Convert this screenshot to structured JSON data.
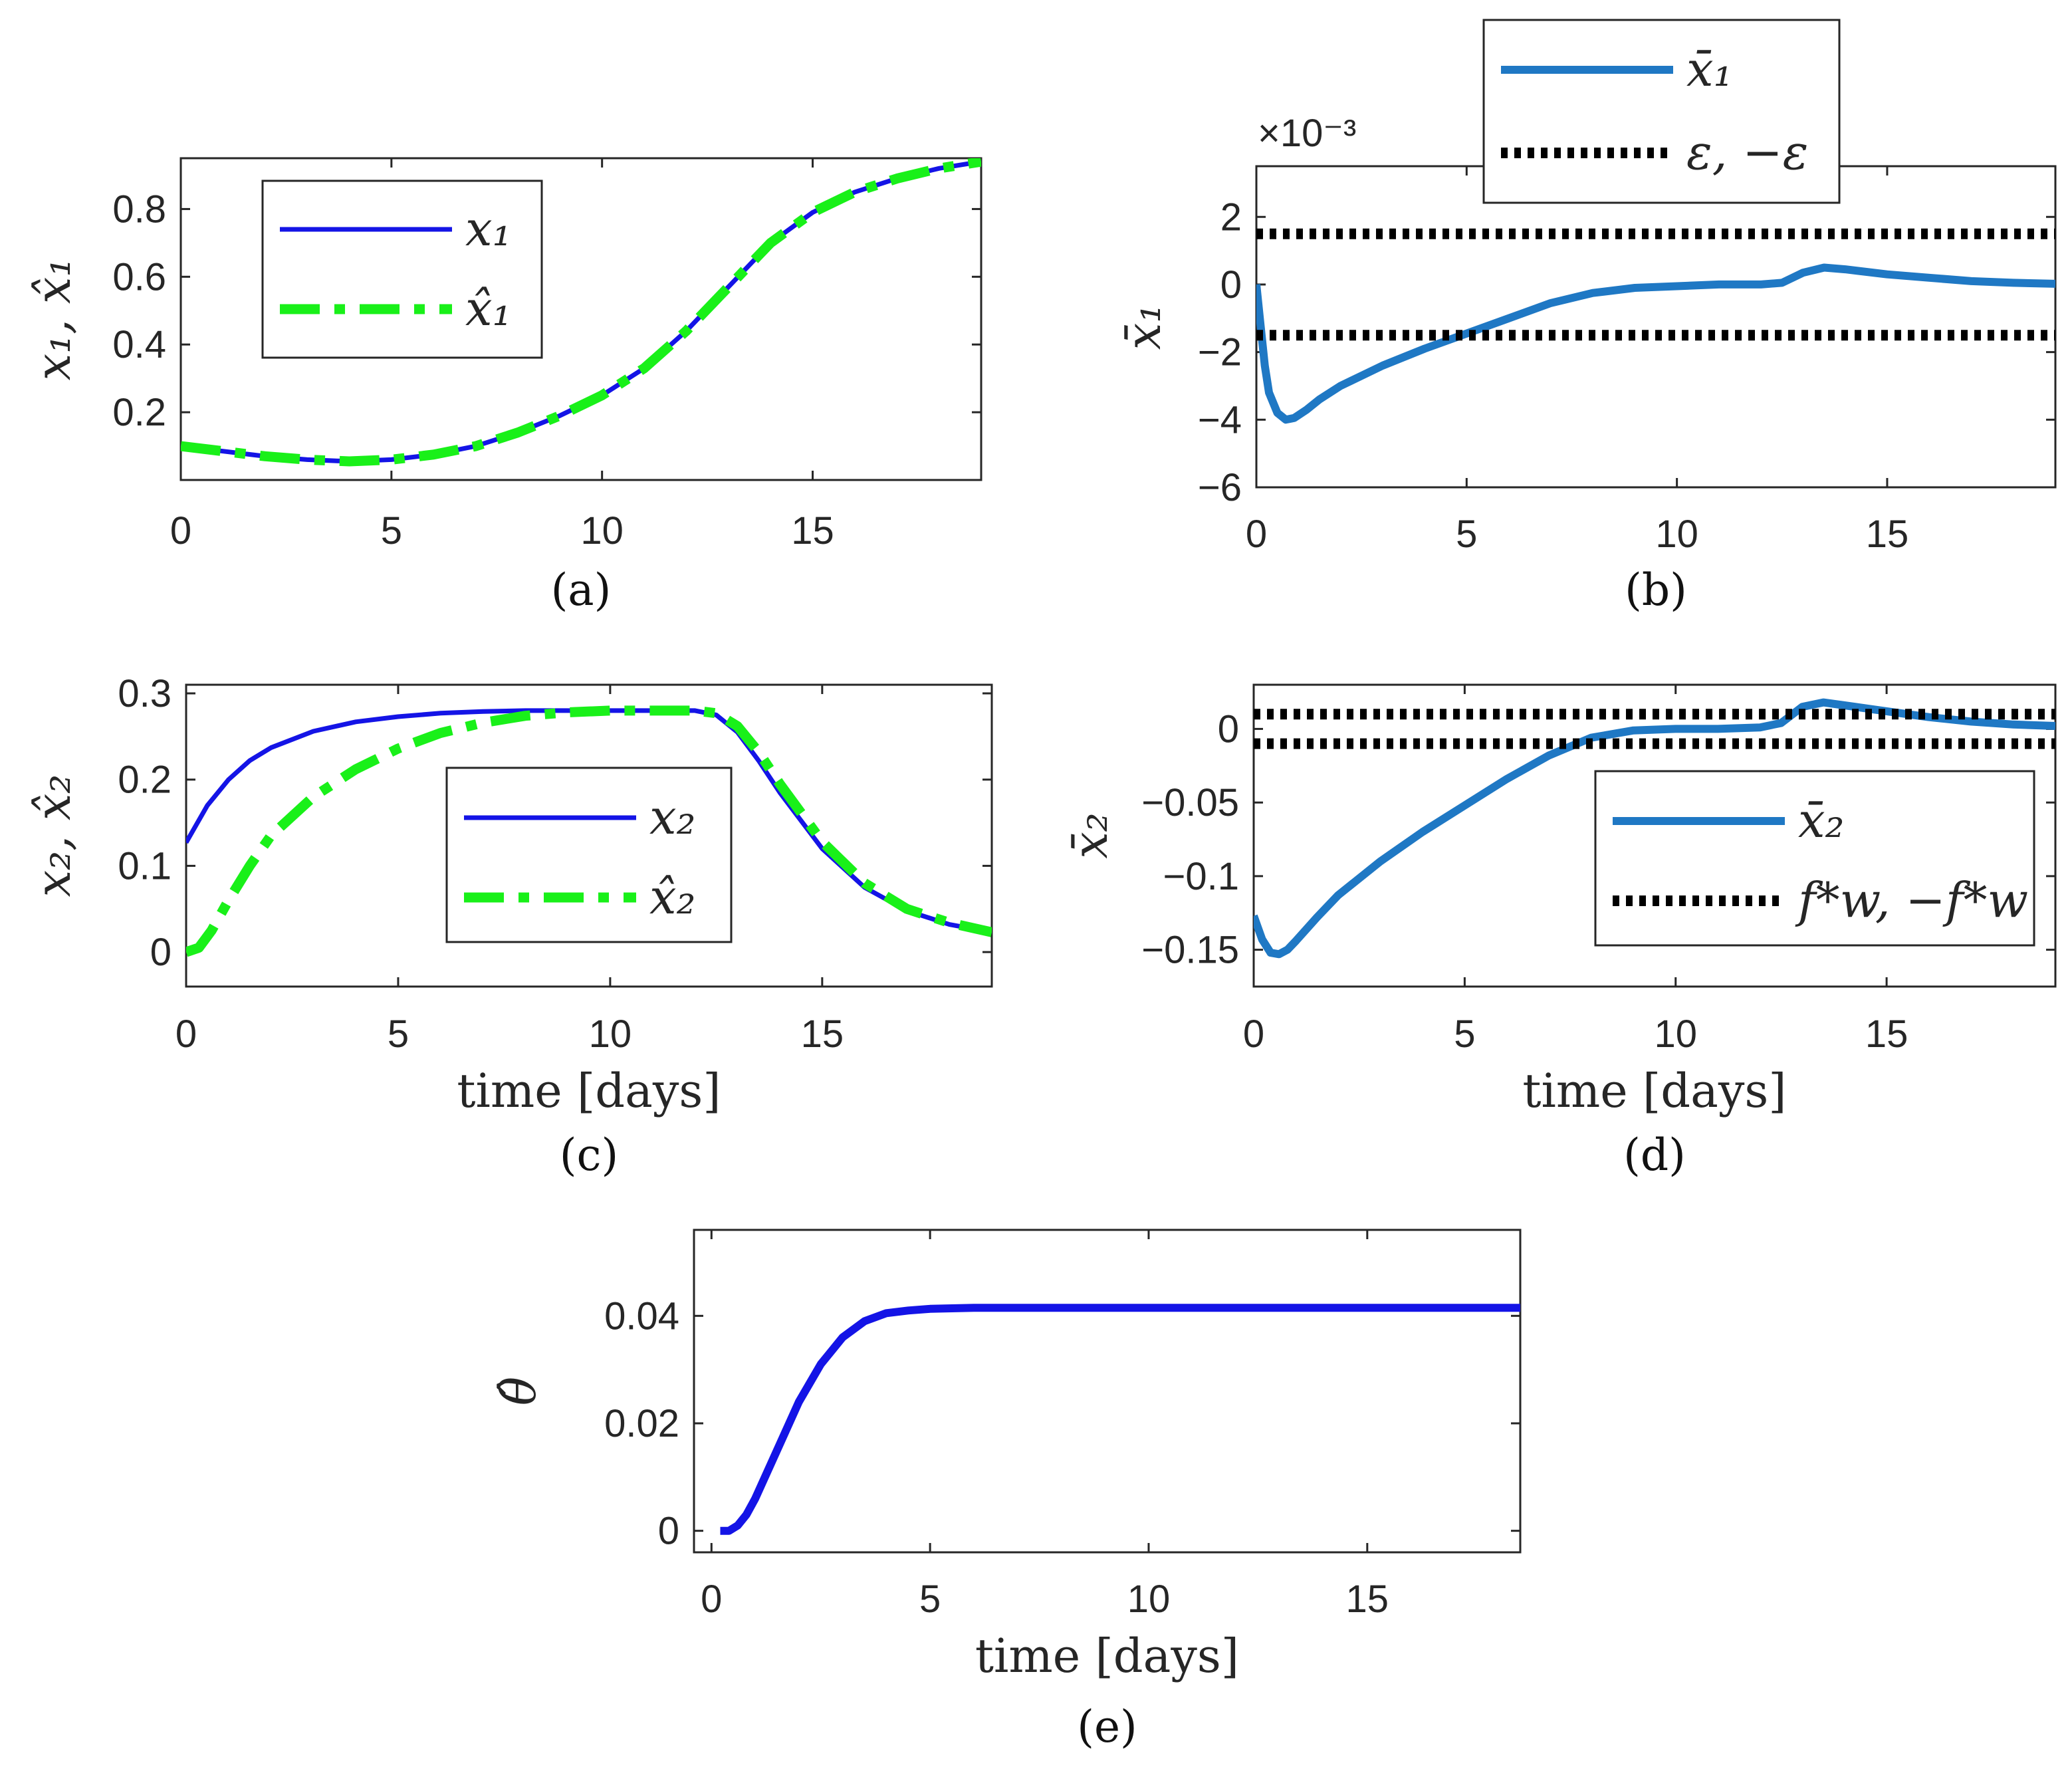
{
  "colors": {
    "blue": "#1414e6",
    "green": "#19f019",
    "lightblue": "#1f78c4",
    "black": "#000000"
  },
  "chart_data": [
    {
      "id": "a",
      "type": "line",
      "caption": "(a)",
      "ylabel": "x₁, x̂₁",
      "xlabel": "",
      "xlim": [
        0,
        19
      ],
      "ylim": [
        0,
        0.95
      ],
      "xticks": [
        "0",
        "5",
        "10",
        "15"
      ],
      "yticks": [
        "0.2",
        "0.4",
        "0.6",
        "0.8"
      ],
      "legend": [
        "x₁",
        "x̂₁"
      ],
      "series": [
        {
          "name": "x₁",
          "style": "solid-blue",
          "x": [
            0,
            1,
            2,
            3,
            4,
            5,
            6,
            7,
            8,
            9,
            10,
            11,
            12,
            13,
            14,
            15,
            16,
            17,
            18,
            19
          ],
          "values": [
            0.1,
            0.085,
            0.07,
            0.06,
            0.055,
            0.06,
            0.075,
            0.1,
            0.14,
            0.19,
            0.25,
            0.33,
            0.44,
            0.57,
            0.7,
            0.79,
            0.85,
            0.89,
            0.92,
            0.94
          ]
        },
        {
          "name": "x̂₁",
          "style": "dashdot-green",
          "x": [
            0,
            1,
            2,
            3,
            4,
            5,
            6,
            7,
            8,
            9,
            10,
            11,
            12,
            13,
            14,
            15,
            16,
            17,
            18,
            19
          ],
          "values": [
            0.1,
            0.085,
            0.07,
            0.06,
            0.055,
            0.06,
            0.075,
            0.1,
            0.14,
            0.19,
            0.25,
            0.33,
            0.44,
            0.57,
            0.7,
            0.79,
            0.85,
            0.89,
            0.92,
            0.94
          ]
        }
      ]
    },
    {
      "id": "b",
      "type": "line",
      "caption": "(b)",
      "ylabel": "x̄₁",
      "xlabel": "",
      "exponent": "×10⁻³",
      "xlim": [
        0,
        19
      ],
      "ylim": [
        -6,
        3.5
      ],
      "xticks": [
        "0",
        "5",
        "10",
        "15"
      ],
      "yticks": [
        "-6",
        "-4",
        "-2",
        "0",
        "2"
      ],
      "legend": [
        "x̄₁",
        "ε, −ε"
      ],
      "series": [
        {
          "name": "x̄₁",
          "style": "thick-lightblue",
          "x": [
            0,
            0.1,
            0.2,
            0.3,
            0.5,
            0.7,
            0.9,
            1.2,
            1.5,
            2,
            3,
            4,
            5,
            6,
            7,
            8,
            9,
            10,
            11,
            12,
            12.5,
            13,
            13.5,
            14,
            15,
            16,
            17,
            18,
            19
          ],
          "values": [
            0,
            -1.2,
            -2.4,
            -3.2,
            -3.8,
            -4.0,
            -3.95,
            -3.7,
            -3.4,
            -3.0,
            -2.4,
            -1.9,
            -1.45,
            -1.0,
            -0.55,
            -0.25,
            -0.1,
            -0.05,
            0,
            0,
            0.05,
            0.35,
            0.5,
            0.45,
            0.3,
            0.2,
            0.1,
            0.05,
            0.02
          ]
        },
        {
          "name": "ε",
          "style": "dotted-black",
          "x": [
            0,
            19
          ],
          "values": [
            1.5,
            1.5
          ]
        },
        {
          "name": "−ε",
          "style": "dotted-black",
          "x": [
            0,
            19
          ],
          "values": [
            -1.5,
            -1.5
          ]
        }
      ]
    },
    {
      "id": "c",
      "type": "line",
      "caption": "(c)",
      "ylabel": "x₂, x̂₂",
      "xlabel": "time [days]",
      "xlim": [
        0,
        19
      ],
      "ylim": [
        -0.04,
        0.31
      ],
      "xticks": [
        "0",
        "5",
        "10",
        "15"
      ],
      "yticks": [
        "0",
        "0.1",
        "0.2",
        "0.3"
      ],
      "legend": [
        "x₂",
        "x̂₂"
      ],
      "series": [
        {
          "name": "x₂",
          "style": "solid-blue",
          "x": [
            0,
            0.5,
            1,
            1.5,
            2,
            3,
            4,
            5,
            6,
            7,
            8,
            9,
            10,
            11,
            12,
            12.5,
            13,
            13.5,
            14,
            15,
            16,
            17,
            18,
            19
          ],
          "values": [
            0.127,
            0.17,
            0.2,
            0.222,
            0.237,
            0.256,
            0.267,
            0.273,
            0.277,
            0.279,
            0.28,
            0.28,
            0.28,
            0.28,
            0.28,
            0.275,
            0.255,
            0.222,
            0.185,
            0.12,
            0.075,
            0.048,
            0.032,
            0.023
          ]
        },
        {
          "name": "x̂₂",
          "style": "dashdot-green",
          "x": [
            0,
            0.3,
            0.6,
            1,
            1.5,
            2,
            3,
            4,
            5,
            6,
            7,
            8,
            9,
            10,
            11,
            12,
            12.5,
            13,
            13.5,
            14,
            15,
            16,
            17,
            18,
            19
          ],
          "values": [
            0,
            0.005,
            0.025,
            0.06,
            0.1,
            0.135,
            0.18,
            0.212,
            0.236,
            0.254,
            0.266,
            0.274,
            0.278,
            0.28,
            0.28,
            0.28,
            0.277,
            0.262,
            0.232,
            0.195,
            0.128,
            0.08,
            0.05,
            0.034,
            0.023
          ]
        }
      ]
    },
    {
      "id": "d",
      "type": "line",
      "caption": "(d)",
      "ylabel": "x̄₂",
      "xlabel": "time [days]",
      "xlim": [
        0,
        19
      ],
      "ylim": [
        -0.175,
        0.03
      ],
      "xticks": [
        "0",
        "5",
        "10",
        "15"
      ],
      "yticks": [
        "-0.15",
        "-0.1",
        "-0.05",
        "0"
      ],
      "legend": [
        "x̄₂",
        "f*w, −f*w"
      ],
      "series": [
        {
          "name": "x̄₂",
          "style": "thick-lightblue",
          "x": [
            0,
            0.2,
            0.4,
            0.6,
            0.8,
            1,
            1.5,
            2,
            3,
            4,
            5,
            6,
            7,
            8,
            9,
            10,
            11,
            12,
            12.5,
            13,
            13.5,
            14,
            15,
            16,
            17,
            18,
            19
          ],
          "values": [
            -0.127,
            -0.143,
            -0.152,
            -0.153,
            -0.15,
            -0.144,
            -0.128,
            -0.113,
            -0.09,
            -0.07,
            -0.052,
            -0.034,
            -0.018,
            -0.006,
            -0.001,
            0,
            0,
            0.001,
            0.004,
            0.015,
            0.018,
            0.016,
            0.012,
            0.008,
            0.005,
            0.003,
            0.002
          ]
        },
        {
          "name": "f*w",
          "style": "dotted-black",
          "x": [
            0,
            19
          ],
          "values": [
            0.01,
            0.01
          ]
        },
        {
          "name": "−f*w",
          "style": "dotted-black",
          "x": [
            0,
            19
          ],
          "values": [
            -0.01,
            -0.01
          ]
        }
      ]
    },
    {
      "id": "e",
      "type": "line",
      "caption": "(e)",
      "ylabel": "θ̂",
      "xlabel": "time [days]",
      "xlim": [
        -0.4,
        18.5
      ],
      "ylim": [
        -0.004,
        0.056
      ],
      "xticks": [
        "0",
        "5",
        "10",
        "15"
      ],
      "yticks": [
        "0",
        "0.02",
        "0.04"
      ],
      "legend": [],
      "series": [
        {
          "name": "θ̂",
          "style": "thick-blue",
          "x": [
            0.2,
            0.4,
            0.6,
            0.8,
            1,
            1.5,
            2,
            2.5,
            3,
            3.5,
            4,
            4.5,
            5,
            6,
            8,
            10,
            12,
            14,
            16,
            18.5
          ],
          "values": [
            0,
            0,
            0.001,
            0.003,
            0.006,
            0.015,
            0.024,
            0.031,
            0.036,
            0.039,
            0.0405,
            0.041,
            0.0413,
            0.0415,
            0.0415,
            0.0415,
            0.0415,
            0.0415,
            0.0415,
            0.0415
          ]
        }
      ]
    }
  ]
}
